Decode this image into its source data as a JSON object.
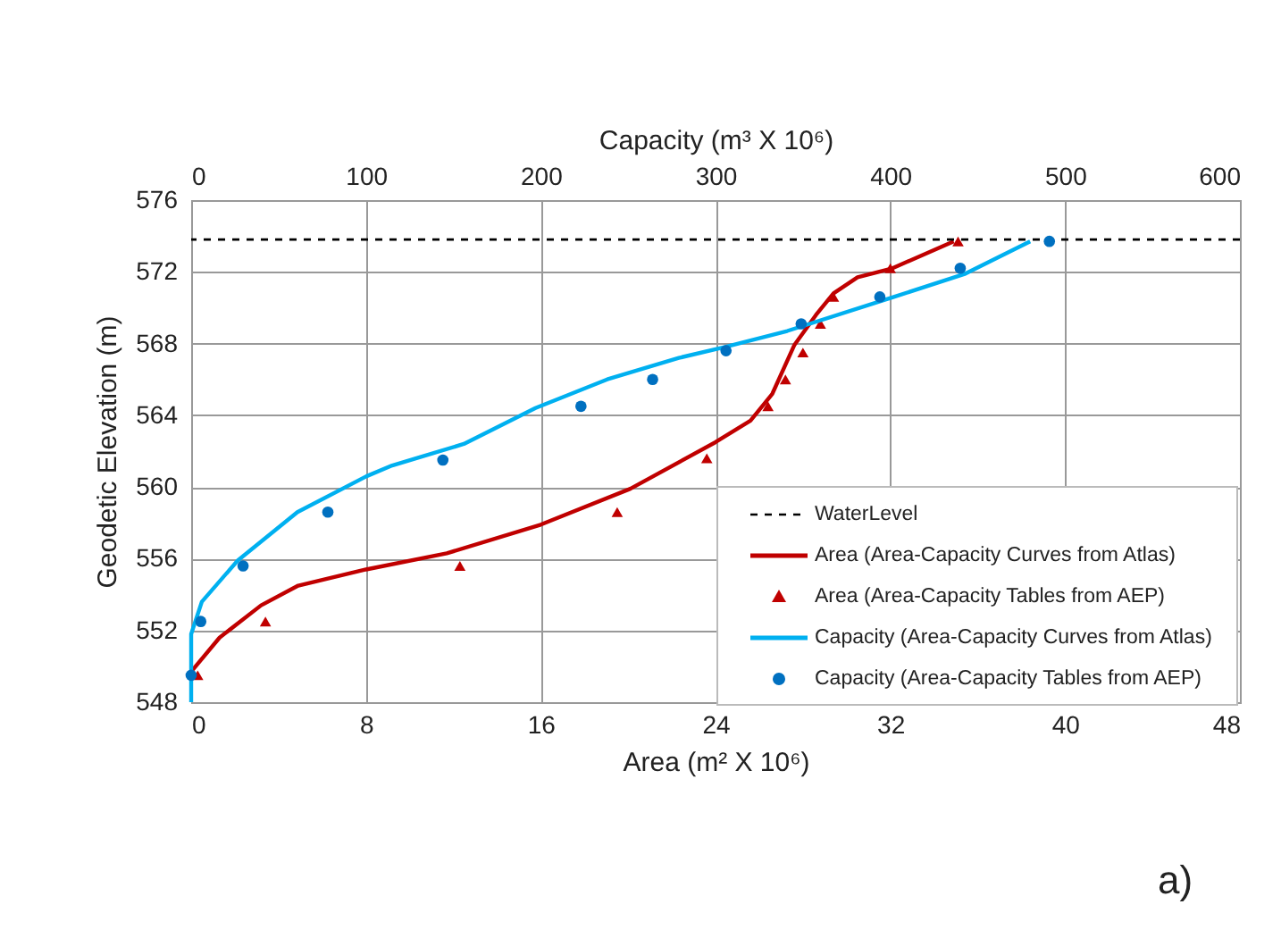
{
  "chart_data": {
    "type": "line",
    "xlabel": "Area (m² X 10⁶)",
    "x2label": "Capacity (m³ X 10⁶)",
    "ylabel": "Geodetic Elevation (m)",
    "xlim": [
      0,
      48
    ],
    "xticks": [
      0,
      8,
      16,
      24,
      32,
      40,
      48
    ],
    "x2lim": [
      0,
      600
    ],
    "x2ticks": [
      0,
      100,
      200,
      300,
      400,
      500,
      600
    ],
    "ylim": [
      548,
      576
    ],
    "yticks": [
      548,
      552,
      556,
      560,
      564,
      568,
      572,
      576
    ],
    "grid": true,
    "legend": "bottom right",
    "ref_lines": [
      {
        "axis": "y",
        "value": 573.8,
        "label": "WaterLevel",
        "color": "#000000",
        "line_style": "dashed"
      }
    ],
    "series": [
      {
        "name": "Area (Area-Capacity Curves from Atlas)",
        "color": "#c00000",
        "line_style": "solid",
        "marker": "none",
        "x": [
          0,
          1.3,
          3.2,
          4.9,
          8.0,
          11.7,
          16.0,
          20.1,
          24.0,
          25.6,
          26.6,
          27.6,
          28.6,
          29.4,
          30.5,
          32.1,
          34.9
        ],
        "values": [
          549.7,
          551.6,
          553.4,
          554.5,
          555.4,
          556.3,
          557.9,
          559.9,
          562.5,
          563.7,
          565.2,
          567.9,
          569.6,
          570.8,
          571.7,
          572.2,
          573.7
        ]
      },
      {
        "name": "Area (Area-Capacity Tables from AEP)",
        "type": "scatter",
        "color": "#c00000",
        "marker": "triangle",
        "x": [
          0.3,
          3.4,
          12.3,
          19.5,
          23.6,
          26.4,
          27.2,
          28.0,
          28.8,
          29.4,
          32.0,
          35.1
        ],
        "values": [
          549.5,
          552.5,
          555.6,
          558.6,
          561.6,
          564.5,
          566.0,
          567.5,
          569.1,
          570.6,
          572.2,
          573.7
        ]
      },
      {
        "name": "Capacity (Area-Capacity Curves from Atlas)",
        "axis": "x2",
        "color": "#00b0f0",
        "line_style": "solid",
        "marker": "none",
        "x": [
          0,
          0,
          6.1,
          26.6,
          60.8,
          100.3,
          115,
          156,
          197,
          238,
          279,
          305,
          341,
          402,
          443,
          480
        ],
        "values": [
          548.0,
          551.8,
          553.6,
          555.9,
          558.6,
          560.6,
          561.2,
          562.4,
          564.4,
          566.0,
          567.2,
          567.8,
          568.7,
          570.6,
          571.9,
          573.7
        ]
      },
      {
        "name": "Capacity (Area-Capacity Tables from AEP)",
        "type": "scatter",
        "axis": "x2",
        "color": "#0070c0",
        "marker": "circle",
        "x": [
          0,
          5.5,
          29.7,
          78.2,
          144,
          223,
          264,
          306,
          349,
          394,
          440,
          491
        ],
        "values": [
          549.5,
          552.5,
          555.6,
          558.6,
          561.5,
          564.5,
          566.0,
          567.6,
          569.1,
          570.6,
          572.2,
          573.7
        ]
      }
    ],
    "annotations": [
      "a)"
    ]
  }
}
